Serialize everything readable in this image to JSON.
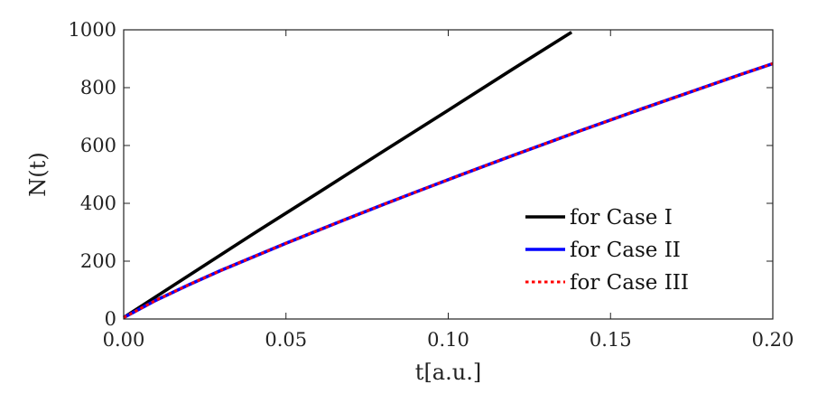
{
  "chart_data": {
    "type": "line",
    "xlabel": "t[a.u.]",
    "ylabel": "N(t)",
    "xlim": [
      0,
      0.2
    ],
    "ylim": [
      0,
      1000
    ],
    "xticks": [
      0.0,
      0.05,
      0.1,
      0.15,
      0.2
    ],
    "xtick_labels": [
      "0.00",
      "0.05",
      "0.10",
      "0.15",
      "0.20"
    ],
    "yticks": [
      0,
      200,
      400,
      600,
      800,
      1000
    ],
    "ytick_labels": [
      "0",
      "200",
      "400",
      "600",
      "800",
      "1000"
    ],
    "grid": false,
    "legend_position": "bottom-right",
    "series": [
      {
        "name": "for Case I",
        "color": "#000000",
        "style": "solid",
        "x": [
          0.0,
          0.02,
          0.04,
          0.06,
          0.08,
          0.1,
          0.12,
          0.138
        ],
        "y": [
          5,
          150,
          295,
          437,
          580,
          722,
          865,
          992
        ]
      },
      {
        "name": "for Case II",
        "color": "#0000ff",
        "style": "solid",
        "x": [
          0.0,
          0.01,
          0.02,
          0.03,
          0.04,
          0.05,
          0.06,
          0.07,
          0.08,
          0.09,
          0.1,
          0.11,
          0.12,
          0.13,
          0.14,
          0.15,
          0.16,
          0.17,
          0.18,
          0.19,
          0.2
        ],
        "y": [
          5,
          65,
          118,
          168,
          215,
          262,
          307,
          352,
          396,
          439,
          482,
          524,
          566,
          607,
          648,
          688,
          728,
          767,
          806,
          845,
          883
        ]
      },
      {
        "name": "for Case III",
        "color": "#ff0000",
        "style": "dotted",
        "x": [
          0.0,
          0.01,
          0.02,
          0.03,
          0.04,
          0.05,
          0.06,
          0.07,
          0.08,
          0.09,
          0.1,
          0.11,
          0.12,
          0.13,
          0.14,
          0.15,
          0.16,
          0.17,
          0.18,
          0.19,
          0.2
        ],
        "y": [
          5,
          65,
          118,
          168,
          215,
          262,
          307,
          352,
          396,
          439,
          482,
          524,
          566,
          607,
          648,
          688,
          728,
          767,
          806,
          845,
          883
        ]
      }
    ]
  }
}
